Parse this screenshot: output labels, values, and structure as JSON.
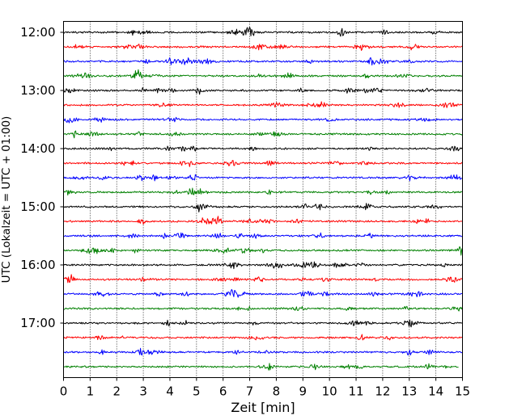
{
  "chart_data": {
    "type": "line",
    "title": "",
    "xlabel": "Zeit  [min]",
    "ylabel": "UTC (Lokalzeit = UTC + 01:00)",
    "xlim": [
      0,
      15
    ],
    "x_ticks": [
      0,
      1,
      2,
      3,
      4,
      5,
      6,
      7,
      8,
      9,
      10,
      11,
      12,
      13,
      14,
      15
    ],
    "y_ticks": [
      "12:00",
      "13:00",
      "14:00",
      "15:00",
      "16:00",
      "17:00"
    ],
    "grid": "vertical dotted",
    "legend": "none",
    "trace_colors": [
      "#000000",
      "#ff0000",
      "#0000ff",
      "#008000"
    ],
    "series": [
      {
        "start": "12:00",
        "color": "#000000"
      },
      {
        "start": "12:15",
        "color": "#ff0000"
      },
      {
        "start": "12:30",
        "color": "#0000ff"
      },
      {
        "start": "12:45",
        "color": "#008000"
      },
      {
        "start": "13:00",
        "color": "#000000"
      },
      {
        "start": "13:15",
        "color": "#ff0000"
      },
      {
        "start": "13:30",
        "color": "#0000ff"
      },
      {
        "start": "13:45",
        "color": "#008000"
      },
      {
        "start": "14:00",
        "color": "#000000"
      },
      {
        "start": "14:15",
        "color": "#ff0000"
      },
      {
        "start": "14:30",
        "color": "#0000ff"
      },
      {
        "start": "14:45",
        "color": "#008000"
      },
      {
        "start": "15:00",
        "color": "#000000"
      },
      {
        "start": "15:15",
        "color": "#ff0000"
      },
      {
        "start": "15:30",
        "color": "#0000ff"
      },
      {
        "start": "15:45",
        "color": "#008000"
      },
      {
        "start": "16:00",
        "color": "#000000"
      },
      {
        "start": "16:15",
        "color": "#ff0000"
      },
      {
        "start": "16:30",
        "color": "#0000ff"
      },
      {
        "start": "16:45",
        "color": "#008000"
      },
      {
        "start": "17:00",
        "color": "#000000"
      },
      {
        "start": "17:15",
        "color": "#ff0000"
      },
      {
        "start": "17:30",
        "color": "#0000ff"
      },
      {
        "start": "17:45",
        "color": "#008000"
      }
    ]
  }
}
